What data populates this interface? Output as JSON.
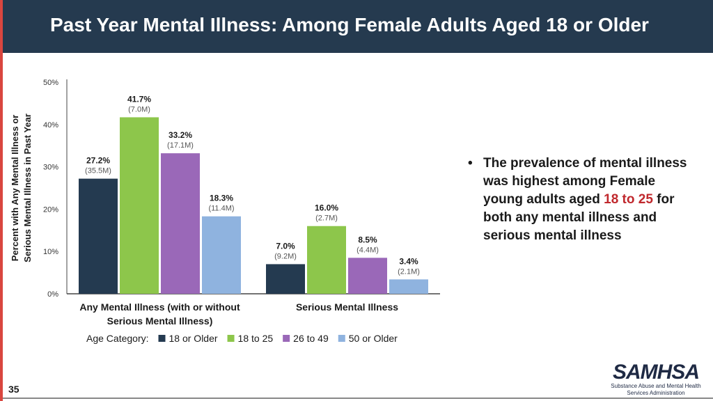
{
  "header": {
    "title": "Past Year Mental Illness: Among Female Adults Aged 18 or Older"
  },
  "colors": {
    "header_bg": "#253a4f",
    "accent_stripe": "#d9463f",
    "highlight": "#c0282d"
  },
  "chart_data": {
    "type": "bar",
    "ylabel_lines": [
      "Percent with Any Mental Illness or",
      "Serious Mental Illness in Past Year"
    ],
    "ylim": [
      0,
      50
    ],
    "yticks": [
      "0%",
      "10%",
      "20%",
      "30%",
      "40%",
      "50%"
    ],
    "categories": [
      {
        "lines": [
          "Any Mental Illness (with or without",
          "Serious Mental Illness)"
        ]
      },
      {
        "lines": [
          "Serious Mental Illness"
        ]
      }
    ],
    "legend_title": "Age Category:",
    "grid": false,
    "legend_position": "bottom",
    "series": [
      {
        "name": "18 or Older",
        "color": "#243a50",
        "values": [
          27.2,
          7.0
        ],
        "labels": [
          "27.2%",
          "7.0%"
        ],
        "sublabels": [
          "(35.5M)",
          "(9.2M)"
        ]
      },
      {
        "name": "18 to 25",
        "color": "#8dc64b",
        "values": [
          41.7,
          16.0
        ],
        "labels": [
          "41.7%",
          "16.0%"
        ],
        "sublabels": [
          "(7.0M)",
          "(2.7M)"
        ]
      },
      {
        "name": "26 to 49",
        "color": "#9a68b8",
        "values": [
          33.2,
          8.5
        ],
        "labels": [
          "33.2%",
          "8.5%"
        ],
        "sublabels": [
          "(17.1M)",
          "(4.4M)"
        ]
      },
      {
        "name": "50 or Older",
        "color": "#8fb3df",
        "values": [
          18.3,
          3.4
        ],
        "labels": [
          "18.3%",
          "3.4%"
        ],
        "sublabels": [
          "(11.4M)",
          "(2.1M)"
        ]
      }
    ]
  },
  "bullet": {
    "pre": "The prevalence of mental illness was highest among Female young adults aged ",
    "highlight": "18 to 25",
    "post": " for both any mental illness and serious mental illness"
  },
  "footer": {
    "page_number": "35",
    "logo": "SAMHSA",
    "logo_sub_1": "Substance Abuse and Mental Health",
    "logo_sub_2": "Services Administration"
  }
}
